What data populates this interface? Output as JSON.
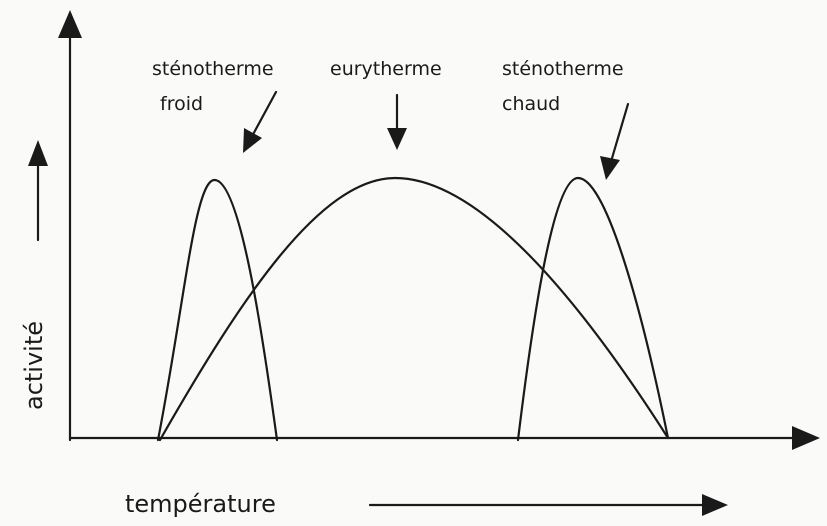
{
  "curves": [
    {
      "lines": [
        "sténotherme",
        "froid"
      ]
    },
    {
      "lines": [
        "eurytherme"
      ]
    },
    {
      "lines": [
        "sténotherme",
        "chaud"
      ]
    }
  ],
  "y_axis_label": "activité",
  "x_axis_label": "température"
}
